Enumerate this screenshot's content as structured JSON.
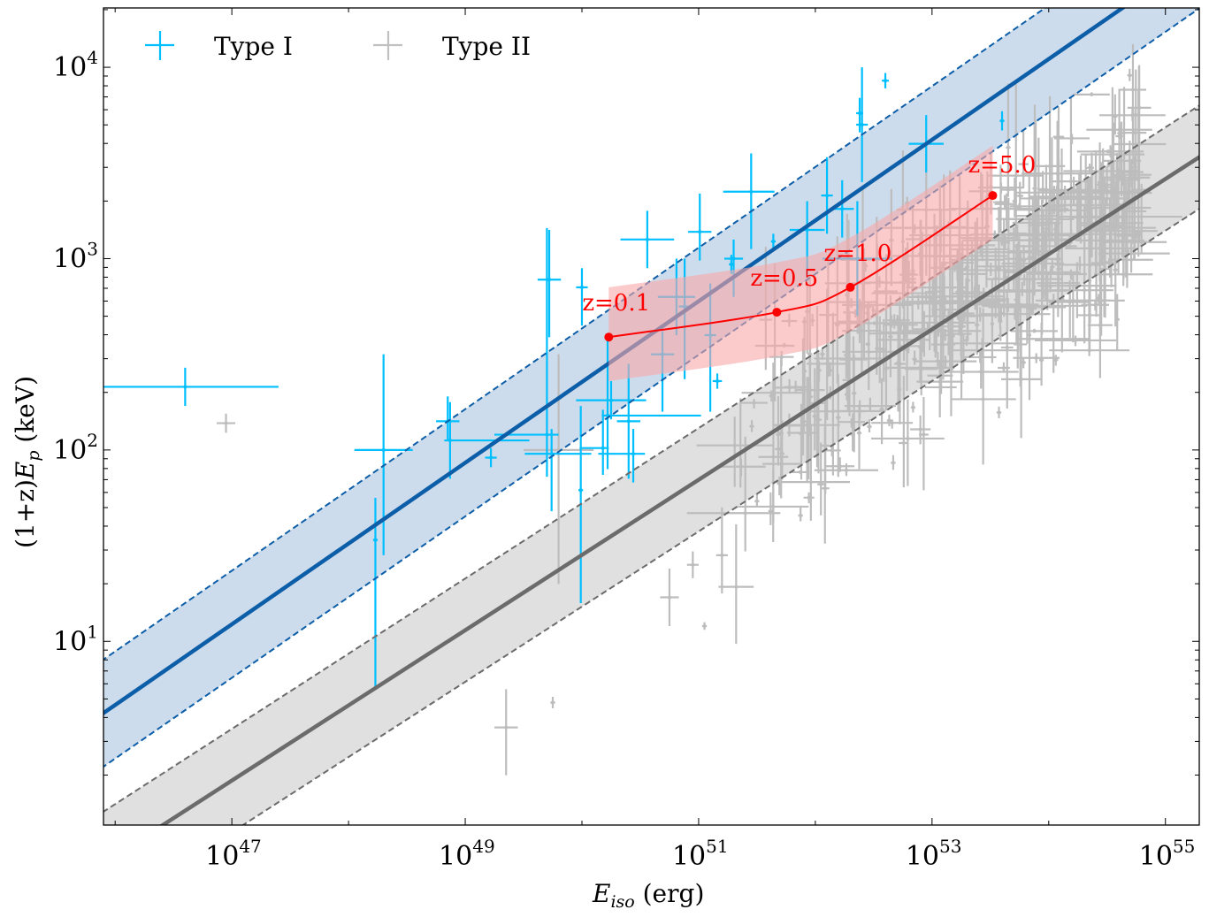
{
  "chart_data": {
    "type": "scatter",
    "title": "",
    "xlabel": "E_iso (erg)",
    "xlabel_main": "E",
    "xlabel_sub": "iso",
    "xlabel_unit": " (erg)",
    "ylabel": "(1+z)E_p (keV)",
    "ylabel_pre": "(1+z)",
    "ylabel_main": "E",
    "ylabel_sub": "p",
    "ylabel_unit": " (keV)",
    "xscale": "log",
    "yscale": "log",
    "xlim_log10": [
      45.9,
      55.29
    ],
    "ylim_log10": [
      0.04,
      4.31
    ],
    "grid": false,
    "legend_position": "top-left",
    "x_ticks": [
      {
        "base": "10",
        "exp": "47",
        "log": 47
      },
      {
        "base": "10",
        "exp": "49",
        "log": 49
      },
      {
        "base": "10",
        "exp": "51",
        "log": 51
      },
      {
        "base": "10",
        "exp": "53",
        "log": 53
      },
      {
        "base": "10",
        "exp": "55",
        "log": 55
      }
    ],
    "y_ticks": [
      {
        "base": "10",
        "exp": "1",
        "log": 1
      },
      {
        "base": "10",
        "exp": "2",
        "log": 2
      },
      {
        "base": "10",
        "exp": "3",
        "log": 3
      },
      {
        "base": "10",
        "exp": "4",
        "log": 4
      }
    ],
    "legend": [
      {
        "name": "Type I",
        "color": "#00bfff"
      },
      {
        "name": "Type II",
        "color": "#c0c0c0"
      }
    ],
    "colors": {
      "type1": "#00bfff",
      "type2": "#bdbdbd",
      "fit1_line": "#0d5ea8",
      "fit1_band": "#cddcec",
      "fit2_line": "#6b6b6b",
      "fit2_band": "#e0e0e0",
      "track": "#ff0000",
      "track_band": "#f8a8a8"
    },
    "fits": [
      {
        "name": "Type I fit",
        "slope": 0.422,
        "intercept_at_log_x_45.9": 0.625,
        "band_dex": 0.28
      },
      {
        "name": "Type II fit",
        "slope": 0.393,
        "intercept_at_log_x_45.9": -0.16,
        "band_dex": 0.27
      }
    ],
    "redshift_track": {
      "points": [
        {
          "label": "z=0.1",
          "z": 0.1,
          "log_eiso": 50.23,
          "log_ep": 2.59
        },
        {
          "label": "z=0.5",
          "z": 0.5,
          "log_eiso": 51.67,
          "log_ep": 2.72
        },
        {
          "label": "z=1.0",
          "z": 1.0,
          "log_eiso": 52.3,
          "log_ep": 2.85
        },
        {
          "label": "z=5.0",
          "z": 5.0,
          "log_eiso": 53.52,
          "log_ep": 3.33
        }
      ],
      "band_dex_low": 0.23,
      "band_dex_high": 0.26
    },
    "series": [
      {
        "name": "Type I",
        "points_log": [
          [
            46.6,
            2.33,
            0.7,
            0.8,
            0.1,
            0.1
          ],
          [
            48.3,
            2.0,
            0.25,
            0.25,
            0.55,
            0.5
          ],
          [
            48.23,
            1.53,
            0.02,
            0.02,
            0.78,
            0.22
          ],
          [
            48.85,
            2.15,
            0.1,
            0.1,
            0.1,
            0.13
          ],
          [
            48.87,
            2.05,
            0.05,
            0.68,
            0.2,
            0.2
          ],
          [
            49.22,
            1.96,
            0.05,
            0.05,
            0.05,
            0.05
          ],
          [
            49.7,
            2.08,
            0.45,
            0.1,
            0.22,
            1.08
          ],
          [
            49.74,
            1.98,
            0.23,
            0.34,
            0.3,
            0.13
          ],
          [
            49.72,
            2.89,
            0.1,
            0.1,
            0.3,
            0.26
          ],
          [
            50.0,
            2.85,
            0.05,
            0.05,
            0.2,
            0.1
          ],
          [
            49.99,
            1.79,
            0.02,
            0.02,
            0.59,
            0.44
          ],
          [
            50.22,
            2.18,
            0.05,
            0.8,
            0.28,
            0.42
          ],
          [
            50.25,
            2.26,
            0.3,
            0.3,
            0.1,
            0.1
          ],
          [
            50.4,
            2.15,
            0.1,
            0.1,
            0.3,
            0.3
          ],
          [
            50.18,
            2.01,
            0.2,
            0.05,
            0.14,
            0.2
          ],
          [
            50.44,
            1.98,
            0.3,
            0.1,
            0.15,
            0.13
          ],
          [
            50.56,
            3.1,
            0.23,
            0.23,
            0.15,
            0.15
          ],
          [
            50.69,
            2.5,
            0.1,
            0.1,
            0.3,
            0.12
          ],
          [
            50.81,
            2.8,
            0.16,
            0.16,
            0.2,
            0.2
          ],
          [
            50.88,
            2.75,
            0.05,
            0.05,
            0.38,
            0.25
          ],
          [
            51.01,
            3.14,
            0.1,
            0.1,
            0.15,
            0.2
          ],
          [
            51.1,
            2.6,
            0.05,
            0.05,
            0.4,
            0.27
          ],
          [
            51.16,
            2.36,
            0.04,
            0.04,
            0.04,
            0.04
          ],
          [
            51.3,
            3.0,
            0.08,
            0.08,
            0.2,
            0.1
          ],
          [
            51.28,
            2.97,
            0.02,
            0.02,
            0.05,
            0.05
          ],
          [
            51.45,
            3.35,
            0.24,
            0.2,
            0.3,
            0.2
          ],
          [
            51.64,
            3.09,
            0.02,
            0.02,
            0.04,
            0.04
          ],
          [
            51.93,
            3.15,
            0.15,
            0.15,
            0.25,
            0.15
          ],
          [
            52.1,
            3.33,
            0.05,
            0.05,
            0.2,
            0.2
          ],
          [
            52.23,
            3.26,
            0.1,
            0.1,
            0.15,
            0.15
          ],
          [
            52.4,
            3.7,
            0.05,
            0.05,
            0.3,
            0.3
          ],
          [
            52.38,
            3.76,
            0.03,
            0.03,
            0.1,
            0.08
          ],
          [
            52.36,
            3.0,
            0.3,
            0.3,
            0.3,
            0.3
          ],
          [
            52.6,
            3.93,
            0.03,
            0.03,
            0.04,
            0.04
          ],
          [
            52.95,
            3.6,
            0.15,
            0.15,
            0.15,
            0.15
          ],
          [
            53.6,
            3.72,
            0.02,
            0.02,
            0.05,
            0.05
          ]
        ]
      },
      {
        "name": "Type II",
        "points_log": "dense cluster of ~400 points, mostly within log_eiso 51.5–54.8 and log_ep 1.5–3.5 following the Type II fit band; isolated outliers at (46.95,2.14), (49.35,0.55), (49.75,0.68), (50.75,1.23), (50.95,1.4), (51.2,1.45), (51.05,1.08)"
      }
    ]
  }
}
